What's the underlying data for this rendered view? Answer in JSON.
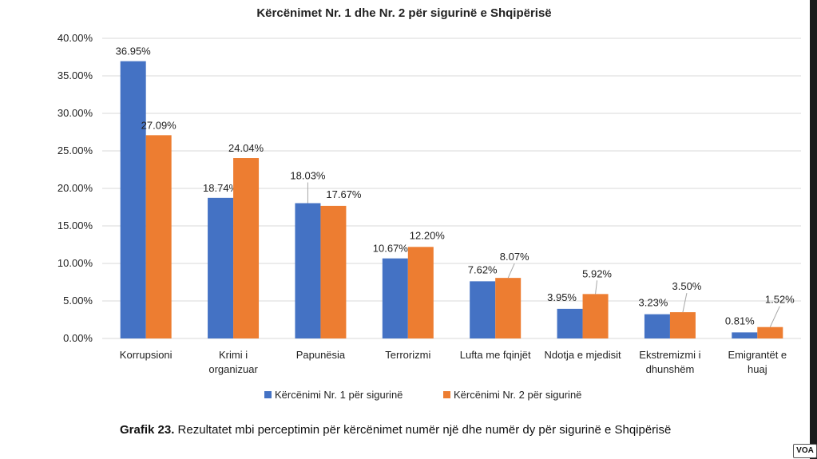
{
  "caption": {
    "label": "Grafik 23.",
    "text": "Rezultatet mbi perceptimin për kërcënimet numër një dhe numër dy për sigurinë e Shqipërisë"
  },
  "watermark": "VOA",
  "colors": {
    "series1": "#4472c4",
    "series2": "#ed7d31",
    "grid": "#d9d9d9"
  },
  "chart_data": {
    "type": "bar",
    "title": "Kërcënimet Nr. 1 dhe Nr. 2 për sigurinë e Shqipërisë",
    "xlabel": "",
    "ylabel": "",
    "ylim": [
      0,
      40
    ],
    "yticks": [
      "0.00%",
      "5.00%",
      "10.00%",
      "15.00%",
      "20.00%",
      "25.00%",
      "30.00%",
      "35.00%",
      "40.00%"
    ],
    "grid": true,
    "legend_position": "bottom",
    "categories": [
      [
        "Korrupsioni"
      ],
      [
        "Krimi i",
        "organizuar"
      ],
      [
        "Papunësia"
      ],
      [
        "Terrorizmi"
      ],
      [
        "Lufta me fqinjët"
      ],
      [
        "Ndotja e mjedisit"
      ],
      [
        "Ekstremizmi i",
        "dhunshëm"
      ],
      [
        "Emigrantët e",
        "huaj"
      ]
    ],
    "series": [
      {
        "name": "Kërcënimi Nr. 1 për sigurinë",
        "values": [
          36.95,
          18.74,
          18.03,
          10.67,
          7.62,
          3.95,
          3.23,
          0.81
        ],
        "labels": [
          "36.95%",
          "18.74%",
          "18.03%",
          "10.67%",
          "7.62%",
          "3.95%",
          "3.23%",
          "0.81%"
        ]
      },
      {
        "name": "Kërcënimi Nr. 2 për sigurinë",
        "values": [
          27.09,
          24.04,
          17.67,
          12.2,
          8.07,
          5.92,
          3.5,
          1.52
        ],
        "labels": [
          "27.09%",
          "24.04%",
          "17.67%",
          "12.20%",
          "8.07%",
          "5.92%",
          "3.50%",
          "1.52%"
        ]
      }
    ]
  }
}
